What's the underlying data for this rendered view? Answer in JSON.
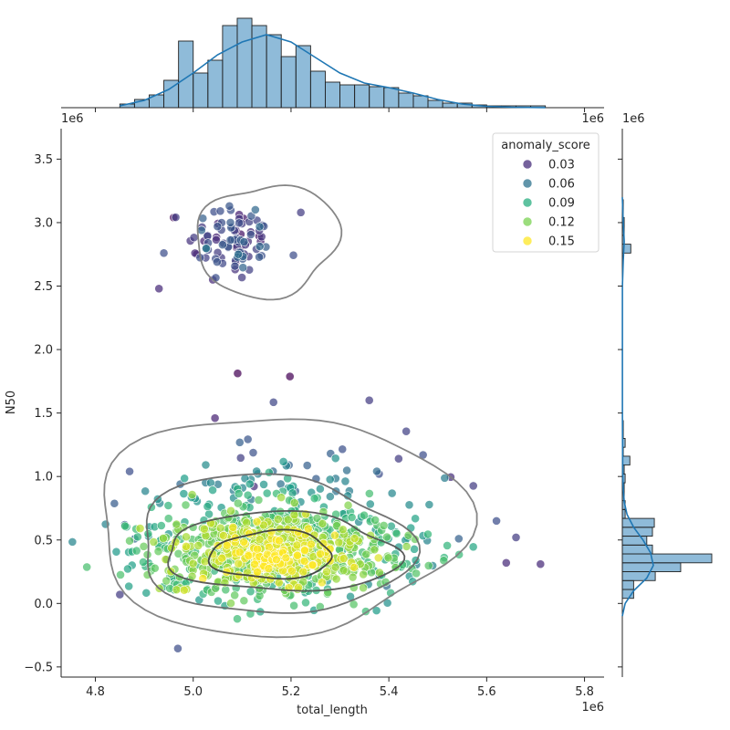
{
  "chart_data": {
    "type": "scatter",
    "title": "",
    "xlabel": "total_length",
    "ylabel": "N50",
    "x_offset_label": "1e6",
    "y_offset_label": "1e6",
    "xlim": [
      4.73,
      5.84
    ],
    "ylim": [
      -0.58,
      3.74
    ],
    "x_ticks": [
      {
        "value": 4.8,
        "label": "4.8"
      },
      {
        "value": 5.0,
        "label": "5.0"
      },
      {
        "value": 5.2,
        "label": "5.2"
      },
      {
        "value": 5.4,
        "label": "5.4"
      },
      {
        "value": 5.6,
        "label": "5.6"
      },
      {
        "value": 5.8,
        "label": "5.8"
      }
    ],
    "y_ticks": [
      {
        "value": -0.5,
        "label": "−0.5"
      },
      {
        "value": 0.0,
        "label": "0.0"
      },
      {
        "value": 0.5,
        "label": "0.5"
      },
      {
        "value": 1.0,
        "label": "1.0"
      },
      {
        "value": 1.5,
        "label": "1.5"
      },
      {
        "value": 2.0,
        "label": "2.0"
      },
      {
        "value": 2.5,
        "label": "2.5"
      },
      {
        "value": 3.0,
        "label": "3.0"
      },
      {
        "value": 3.5,
        "label": "3.5"
      }
    ],
    "legend": {
      "title": "anomaly_score",
      "position": "top-right",
      "entries": [
        {
          "label": "0.03",
          "value": 0.03,
          "color": "#472d7b"
        },
        {
          "label": "0.06",
          "value": 0.06,
          "color": "#2c728e"
        },
        {
          "label": "0.09",
          "value": 0.09,
          "color": "#28ae80"
        },
        {
          "label": "0.12",
          "value": 0.12,
          "color": "#7ad151"
        },
        {
          "label": "0.15",
          "value": 0.15,
          "color": "#fde725"
        }
      ]
    },
    "colormap": "viridis",
    "score_range": [
      0.0,
      0.17
    ],
    "clusters": [
      {
        "n": 95,
        "x_mean": 5.08,
        "x_sd": 0.045,
        "y_mean": 2.86,
        "y_sd": 0.16,
        "score_mean": 0.035,
        "score_sd": 0.015
      },
      {
        "n": 1050,
        "x_mean": 5.17,
        "x_sd": 0.13,
        "y_mean": 0.4,
        "y_sd": 0.18,
        "score_mean": 0.095,
        "score_sd": 0.04
      }
    ],
    "highlight_points": [
      {
        "x": 4.93,
        "y": 2.48,
        "score": 0.02
      },
      {
        "x": 4.96,
        "y": 3.04,
        "score": 0.0
      },
      {
        "x": 4.94,
        "y": 2.76,
        "score": 0.04
      },
      {
        "x": 5.22,
        "y": 3.08,
        "score": 0.03
      },
      {
        "x": 5.04,
        "y": 2.55,
        "score": 0.02
      },
      {
        "x": 5.71,
        "y": 0.31,
        "score": 0.02
      },
      {
        "x": 5.66,
        "y": 0.52,
        "score": 0.03
      },
      {
        "x": 5.62,
        "y": 0.65,
        "score": 0.04
      },
      {
        "x": 5.64,
        "y": 0.32,
        "score": 0.02
      },
      {
        "x": 5.36,
        "y": 1.6,
        "score": 0.03
      },
      {
        "x": 4.86,
        "y": 0.62,
        "score": 0.05
      },
      {
        "x": 4.87,
        "y": 1.04,
        "score": 0.04
      },
      {
        "x": 4.85,
        "y": 0.07,
        "score": 0.03
      },
      {
        "x": 5.47,
        "y": 1.17,
        "score": 0.04
      },
      {
        "x": 5.42,
        "y": 1.14,
        "score": 0.03
      },
      {
        "x": 5.38,
        "y": 1.02,
        "score": 0.04
      }
    ],
    "kde_contours": [
      {
        "level": 1,
        "color": "#7f7f7f",
        "rings": [
          {
            "cx": 5.15,
            "cy": 2.86,
            "rx": 0.145,
            "ry": 0.44
          }
        ]
      },
      {
        "level": 1,
        "color": "#7f7f7f",
        "rings": [
          {
            "cx": 5.17,
            "cy": 0.62,
            "rx": 0.36,
            "ry": 0.9
          }
        ]
      },
      {
        "level": 2,
        "color": "#6b6b6b",
        "rings": [
          {
            "cx": 5.16,
            "cy": 0.46,
            "rx": 0.27,
            "ry": 0.56
          }
        ]
      },
      {
        "level": 3,
        "color": "#545454",
        "rings": [
          {
            "cx": 5.18,
            "cy": 0.4,
            "rx": 0.245,
            "ry": 0.3
          }
        ]
      },
      {
        "level": 4,
        "color": "#3e3e3e",
        "rings": [
          {
            "cx": 5.16,
            "cy": 0.38,
            "rx": 0.13,
            "ry": 0.18
          }
        ]
      }
    ],
    "marginal_x": {
      "bin_edges": [
        4.85,
        4.88,
        4.91,
        4.94,
        4.97,
        5.0,
        5.03,
        5.06,
        5.09,
        5.12,
        5.15,
        5.18,
        5.21,
        5.24,
        5.27,
        5.3,
        5.33,
        5.36,
        5.39,
        5.42,
        5.45,
        5.48,
        5.51,
        5.54,
        5.57,
        5.6,
        5.63,
        5.66,
        5.69,
        5.72
      ],
      "counts": [
        4,
        9,
        14,
        30,
        73,
        38,
        52,
        90,
        98,
        90,
        80,
        56,
        68,
        40,
        28,
        25,
        25,
        23,
        22,
        16,
        13,
        8,
        5,
        5,
        3,
        2,
        2,
        2,
        2
      ],
      "kde": [
        [
          4.85,
          2
        ],
        [
          4.9,
          8
        ],
        [
          4.95,
          20
        ],
        [
          5.0,
          38
        ],
        [
          5.05,
          58
        ],
        [
          5.1,
          72
        ],
        [
          5.15,
          80
        ],
        [
          5.2,
          72
        ],
        [
          5.25,
          55
        ],
        [
          5.3,
          38
        ],
        [
          5.35,
          27
        ],
        [
          5.4,
          22
        ],
        [
          5.45,
          16
        ],
        [
          5.5,
          9
        ],
        [
          5.55,
          4
        ],
        [
          5.6,
          1.5
        ],
        [
          5.65,
          0.5
        ],
        [
          5.72,
          0
        ]
      ],
      "color": "#1f77b4"
    },
    "marginal_y": {
      "bins": [
        {
          "y0": 0.04,
          "y1": 0.11,
          "count": 12
        },
        {
          "y0": 0.11,
          "y1": 0.18,
          "count": 12
        },
        {
          "y0": 0.18,
          "y1": 0.25,
          "count": 35
        },
        {
          "y0": 0.25,
          "y1": 0.32,
          "count": 62
        },
        {
          "y0": 0.32,
          "y1": 0.39,
          "count": 95
        },
        {
          "y0": 0.39,
          "y1": 0.46,
          "count": 32
        },
        {
          "y0": 0.46,
          "y1": 0.53,
          "count": 26
        },
        {
          "y0": 0.53,
          "y1": 0.6,
          "count": 32
        },
        {
          "y0": 0.6,
          "y1": 0.67,
          "count": 34
        },
        {
          "y0": 0.67,
          "y1": 0.74,
          "count": 3
        },
        {
          "y0": 0.74,
          "y1": 0.81,
          "count": 3
        },
        {
          "y0": 0.81,
          "y1": 0.88,
          "count": 2
        },
        {
          "y0": 0.88,
          "y1": 0.95,
          "count": 2
        },
        {
          "y0": 0.95,
          "y1": 1.02,
          "count": 3
        },
        {
          "y0": 1.02,
          "y1": 1.09,
          "count": 2
        },
        {
          "y0": 1.09,
          "y1": 1.16,
          "count": 8
        },
        {
          "y0": 1.16,
          "y1": 1.23,
          "count": 1
        },
        {
          "y0": 1.23,
          "y1": 1.3,
          "count": 3
        },
        {
          "y0": 1.3,
          "y1": 1.37,
          "count": 1
        },
        {
          "y0": 1.37,
          "y1": 1.44,
          "count": 1
        },
        {
          "y0": 2.76,
          "y1": 2.83,
          "count": 9
        },
        {
          "y0": 2.83,
          "y1": 2.9,
          "count": 2
        },
        {
          "y0": 2.9,
          "y1": 2.97,
          "count": 2
        },
        {
          "y0": 2.97,
          "y1": 3.04,
          "count": 2
        },
        {
          "y0": 3.04,
          "y1": 3.11,
          "count": 1
        },
        {
          "y0": 3.11,
          "y1": 3.18,
          "count": 1
        }
      ],
      "kde": [
        [
          -0.1,
          0
        ],
        [
          0.0,
          3
        ],
        [
          0.1,
          12
        ],
        [
          0.2,
          26
        ],
        [
          0.3,
          33
        ],
        [
          0.4,
          30
        ],
        [
          0.5,
          22
        ],
        [
          0.6,
          12
        ],
        [
          0.7,
          5
        ],
        [
          0.8,
          2
        ],
        [
          0.9,
          1
        ],
        [
          1.0,
          0.5
        ],
        [
          1.2,
          0.3
        ],
        [
          1.5,
          0.1
        ],
        [
          2.0,
          0.05
        ],
        [
          2.5,
          0.1
        ],
        [
          2.7,
          1
        ],
        [
          2.85,
          2
        ],
        [
          3.0,
          1
        ],
        [
          3.2,
          0
        ]
      ],
      "color": "#1f77b4"
    }
  }
}
